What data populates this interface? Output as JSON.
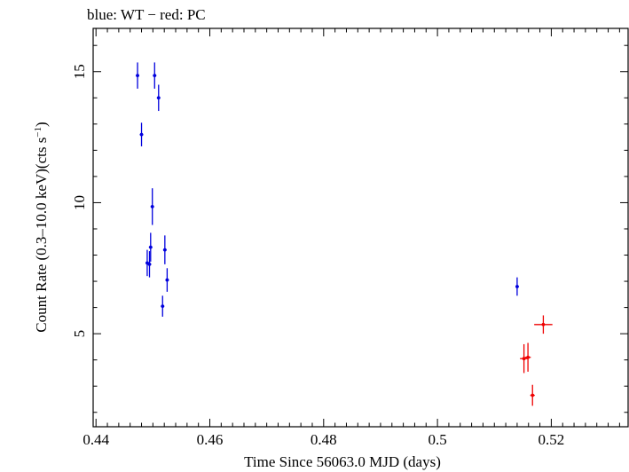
{
  "chart_data": {
    "type": "scatter",
    "title": "blue: WT − red: PC",
    "xlabel": "Time Since 56063.0 MJD (days)",
    "ylabel_main": "Count Rate (0.3–10.0 keV)(cts s",
    "ylabel_sup": "−1",
    "ylabel_close": ")",
    "xlim": [
      0.4395,
      0.5335
    ],
    "ylim": [
      1.45,
      16.65
    ],
    "xticks": [
      {
        "value": 0.44,
        "label": "0.44"
      },
      {
        "value": 0.46,
        "label": "0.46"
      },
      {
        "value": 0.48,
        "label": "0.48"
      },
      {
        "value": 0.5,
        "label": "0.5"
      },
      {
        "value": 0.52,
        "label": "0.52"
      }
    ],
    "yticks": [
      {
        "value": 5,
        "label": "5"
      },
      {
        "value": 10,
        "label": "10"
      },
      {
        "value": 15,
        "label": "15"
      }
    ],
    "series": [
      {
        "color": "#0000dd",
        "points": [
          {
            "x": 0.4473,
            "y": 14.85,
            "xerr": 0.0003,
            "yerr": 0.5
          },
          {
            "x": 0.448,
            "y": 12.6,
            "xerr": 0.0003,
            "yerr": 0.45
          },
          {
            "x": 0.449,
            "y": 7.7,
            "xerr": 0.0003,
            "yerr": 0.5
          },
          {
            "x": 0.4494,
            "y": 7.65,
            "xerr": 0.0003,
            "yerr": 0.5
          },
          {
            "x": 0.4496,
            "y": 8.3,
            "xerr": 0.0003,
            "yerr": 0.55
          },
          {
            "x": 0.4499,
            "y": 9.85,
            "xerr": 0.0003,
            "yerr": 0.7
          },
          {
            "x": 0.4503,
            "y": 14.85,
            "xerr": 0.0003,
            "yerr": 0.5
          },
          {
            "x": 0.451,
            "y": 14.0,
            "xerr": 0.0003,
            "yerr": 0.5
          },
          {
            "x": 0.4517,
            "y": 6.05,
            "xerr": 0.0003,
            "yerr": 0.4
          },
          {
            "x": 0.4521,
            "y": 8.2,
            "xerr": 0.0003,
            "yerr": 0.55
          },
          {
            "x": 0.4525,
            "y": 7.05,
            "xerr": 0.0003,
            "yerr": 0.45
          },
          {
            "x": 0.514,
            "y": 6.8,
            "xerr": 0.0003,
            "yerr": 0.35
          }
        ]
      },
      {
        "color": "#ee0000",
        "points": [
          {
            "x": 0.5152,
            "y": 4.05,
            "xerr": 0.0007,
            "yerr": 0.55
          },
          {
            "x": 0.5159,
            "y": 4.1,
            "xerr": 0.0005,
            "yerr": 0.55
          },
          {
            "x": 0.5167,
            "y": 2.65,
            "xerr": 0.0004,
            "yerr": 0.4
          },
          {
            "x": 0.5186,
            "y": 5.35,
            "xerr": 0.0016,
            "yerr": 0.35
          }
        ]
      }
    ]
  }
}
